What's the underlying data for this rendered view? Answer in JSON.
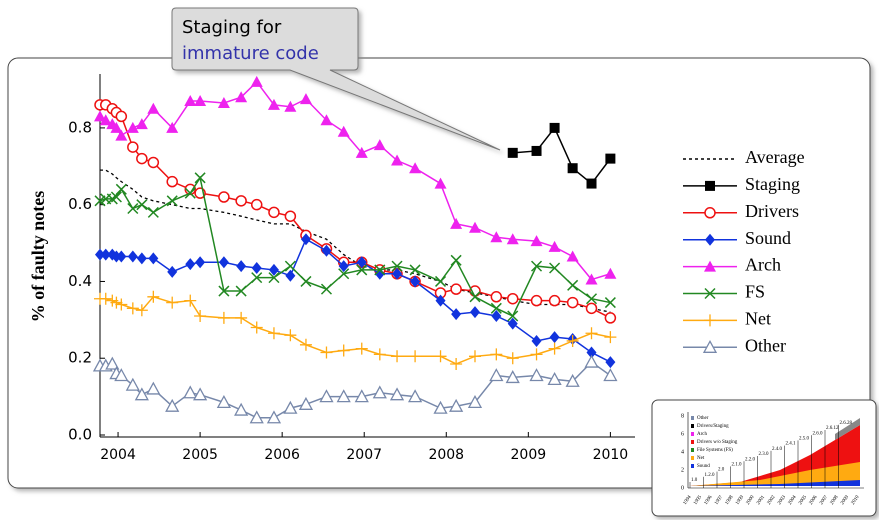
{
  "chart_data": {
    "type": "line",
    "annotation": {
      "line1": "Staging for",
      "line2": "immature code"
    },
    "y_label": "% of faulty notes",
    "x": [
      2003.78,
      2003.85,
      2003.93,
      2003.98,
      2004.04,
      2004.18,
      2004.29,
      2004.43,
      2004.66,
      2004.88,
      2005.0,
      2005.29,
      2005.5,
      2005.69,
      2005.9,
      2006.1,
      2006.29,
      2006.54,
      2006.75,
      2006.97,
      2007.19,
      2007.4,
      2007.62,
      2007.93,
      2008.12,
      2008.35,
      2008.61,
      2008.81,
      2009.1,
      2009.32,
      2009.54,
      2009.77,
      2010.0
    ],
    "xlim": [
      2003.78,
      2010.3
    ],
    "xticks": [
      2004,
      2005,
      2006,
      2007,
      2008,
      2009,
      2010
    ],
    "ylim": [
      0,
      0.93
    ],
    "yticks": [
      {
        "value": 0,
        "label": "0.0"
      },
      0.2,
      0.4,
      0.6,
      0.8
    ],
    "series": [
      {
        "name": "Average",
        "color": "#000000",
        "marker": "none",
        "dash": true,
        "values": [
          0.69,
          0.69,
          0.68,
          0.67,
          0.66,
          0.64,
          0.62,
          0.61,
          0.6,
          0.59,
          0.59,
          0.58,
          0.57,
          0.56,
          0.55,
          0.55,
          0.53,
          0.51,
          0.47,
          0.44,
          0.43,
          0.43,
          0.42,
          0.4,
          0.38,
          0.37,
          0.36,
          0.35,
          0.34,
          0.34,
          0.34,
          0.33,
          0.32
        ]
      },
      {
        "name": "Staging",
        "color": "#000000",
        "marker": "square",
        "values": [
          null,
          null,
          null,
          null,
          null,
          null,
          null,
          null,
          null,
          null,
          null,
          null,
          null,
          null,
          null,
          null,
          null,
          null,
          null,
          null,
          null,
          null,
          null,
          null,
          null,
          null,
          null,
          0.735,
          0.74,
          0.8,
          0.695,
          0.655,
          0.72
        ]
      },
      {
        "name": "Drivers",
        "color": "#ee1111",
        "marker": "circle-open",
        "values": [
          0.86,
          0.86,
          0.85,
          0.84,
          0.83,
          0.75,
          0.72,
          0.71,
          0.66,
          0.64,
          0.63,
          0.62,
          0.61,
          0.6,
          0.58,
          0.57,
          0.52,
          0.485,
          0.45,
          0.45,
          0.43,
          0.42,
          0.4,
          0.37,
          0.38,
          0.375,
          0.36,
          0.355,
          0.35,
          0.35,
          0.345,
          0.33,
          0.305
        ]
      },
      {
        "name": "Sound",
        "color": "#1133dd",
        "marker": "diamond",
        "values": [
          0.47,
          0.47,
          0.47,
          0.465,
          0.465,
          0.465,
          0.46,
          0.46,
          0.425,
          0.445,
          0.45,
          0.45,
          0.44,
          0.435,
          0.43,
          0.415,
          0.51,
          0.48,
          0.44,
          0.45,
          0.42,
          0.42,
          0.4,
          0.35,
          0.315,
          0.32,
          0.31,
          0.29,
          0.245,
          0.255,
          0.25,
          0.215,
          0.19
        ]
      },
      {
        "name": "Arch",
        "color": "#ee22ee",
        "marker": "triangle",
        "values": [
          0.83,
          0.82,
          0.81,
          0.8,
          0.78,
          0.8,
          0.81,
          0.85,
          0.8,
          0.87,
          0.87,
          0.865,
          0.88,
          0.92,
          0.86,
          0.855,
          0.875,
          0.82,
          0.79,
          0.735,
          0.755,
          0.715,
          0.695,
          0.655,
          0.55,
          0.54,
          0.515,
          0.51,
          0.505,
          0.49,
          0.465,
          0.405,
          0.42
        ]
      },
      {
        "name": "FS",
        "color": "#228822",
        "marker": "x",
        "values": [
          0.61,
          0.615,
          0.615,
          0.62,
          0.64,
          0.59,
          0.6,
          0.58,
          0.61,
          0.63,
          0.67,
          0.375,
          0.375,
          0.41,
          0.41,
          0.44,
          0.4,
          0.38,
          0.42,
          0.43,
          0.43,
          0.44,
          0.43,
          0.4,
          0.455,
          0.36,
          0.33,
          0.31,
          0.44,
          0.435,
          0.39,
          0.355,
          0.345
        ]
      },
      {
        "name": "Net",
        "color": "#ffaa11",
        "marker": "plus",
        "values": [
          0.355,
          0.355,
          0.35,
          0.345,
          0.34,
          0.33,
          0.325,
          0.36,
          0.345,
          0.35,
          0.31,
          0.305,
          0.305,
          0.28,
          0.265,
          0.26,
          0.235,
          0.215,
          0.22,
          0.225,
          0.21,
          0.205,
          0.205,
          0.205,
          0.185,
          0.205,
          0.21,
          0.2,
          0.21,
          0.225,
          0.245,
          0.265,
          0.255
        ]
      },
      {
        "name": "Other",
        "color": "#7788aa",
        "marker": "triangle-open",
        "values": [
          0.18,
          0.18,
          0.185,
          0.16,
          0.155,
          0.13,
          0.105,
          0.12,
          0.075,
          0.11,
          0.105,
          0.085,
          0.065,
          0.045,
          0.045,
          0.07,
          0.08,
          0.1,
          0.1,
          0.1,
          0.11,
          0.105,
          0.1,
          0.07,
          0.075,
          0.085,
          0.155,
          0.15,
          0.155,
          0.145,
          0.14,
          0.19,
          0.155
        ]
      }
    ]
  },
  "inset": {
    "legend": [
      "Other",
      "Drivers/Staging",
      "Arch",
      "Drivers w/o Staging",
      "File Systems (FS)",
      "Net",
      "Sound"
    ],
    "legend_colors": [
      "#7788aa",
      "#000000",
      "#ee22ee",
      "#ee1111",
      "#228822",
      "#ffaa11",
      "#1133dd"
    ],
    "yticks": [
      0,
      2,
      4,
      6,
      8
    ],
    "years": [
      "1994",
      "1995",
      "1996",
      "1997",
      "1998",
      "1999",
      "2000",
      "2001",
      "2002",
      "2003",
      "2004",
      "2005",
      "2006",
      "2007",
      "2008",
      "2009",
      "2010"
    ],
    "versions": [
      "1.0",
      "1.2.0",
      "2.0",
      "2.1.0",
      "2.2.0",
      "2.3.0",
      "2.4.0",
      "2.4.1",
      "2.5.0",
      "2.6.0",
      "2.6.12",
      "2.6.28"
    ]
  }
}
